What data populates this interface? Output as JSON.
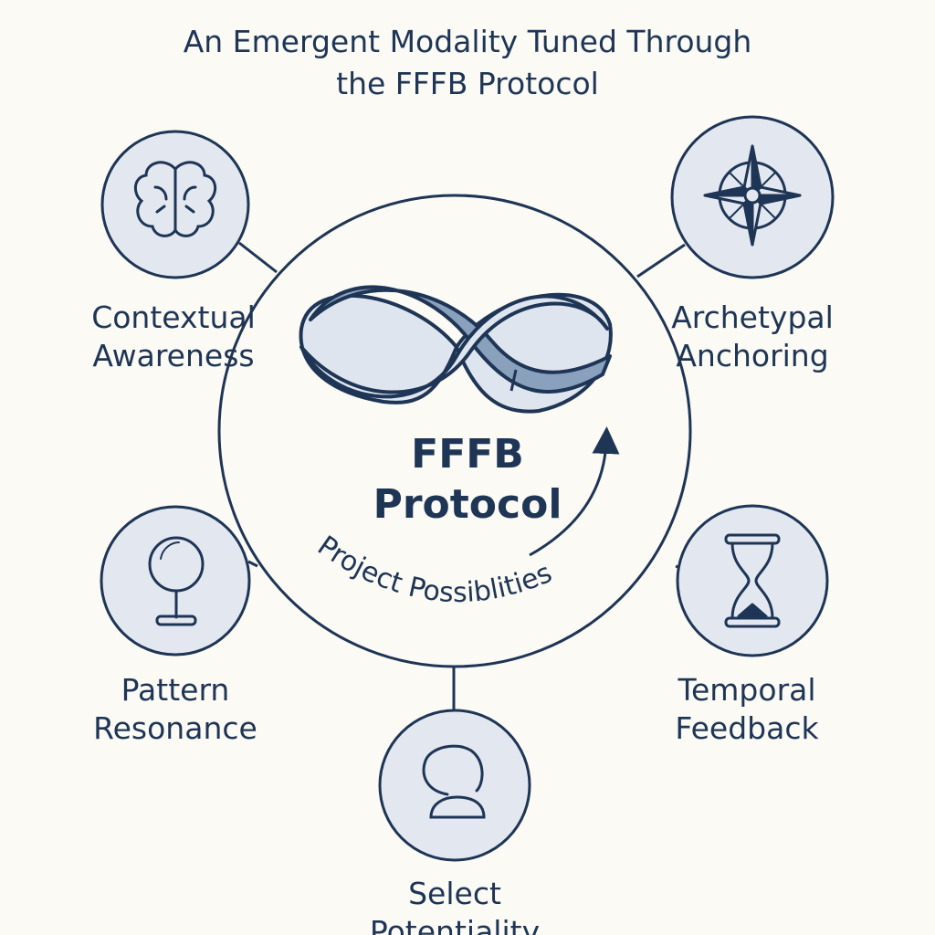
{
  "title": {
    "line1": "An Emergent Modality Tuned Through",
    "line2": "the FFFB Protocol"
  },
  "center": {
    "line1": "FFFB",
    "line2": "Protocol",
    "arc_text": "Project Possiblities"
  },
  "nodes": {
    "contextual": {
      "line1": "Contextual",
      "line2": "Awareness",
      "icon": "brain-icon"
    },
    "archetypal": {
      "line1": "Archetypal",
      "line2": "Anchoring",
      "icon": "compass-star-icon"
    },
    "pattern": {
      "line1": "Pattern",
      "line2": "Resonance",
      "icon": "magnifier-icon"
    },
    "temporal": {
      "line1": "Temporal",
      "line2": "Feedback",
      "icon": "hourglass-icon"
    },
    "select": {
      "line1": "Select",
      "line2": "Potentiality",
      "icon": "person-icon"
    }
  },
  "colors": {
    "ink": "#1e3556",
    "background": "#fbfaf5",
    "node_fill": "#e3e8f0",
    "ribbon_light": "#dfe5ee",
    "ribbon_dark": "#8aa1bd"
  }
}
